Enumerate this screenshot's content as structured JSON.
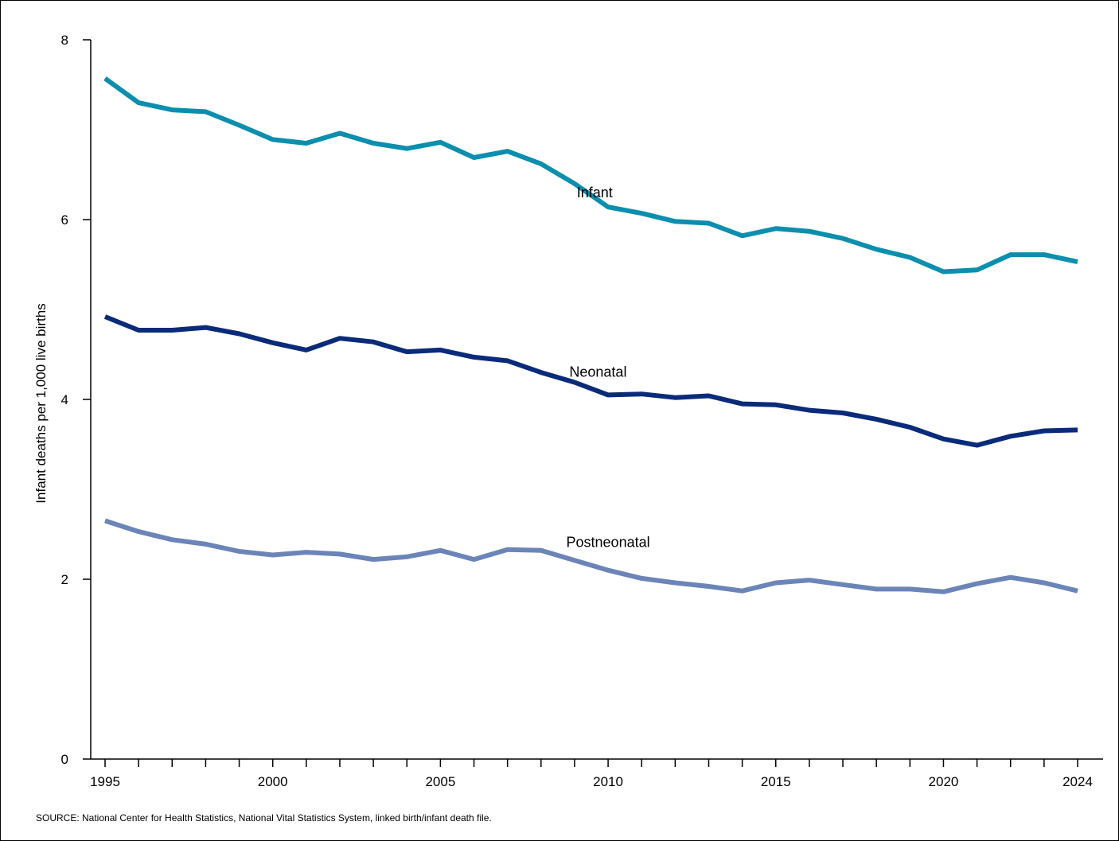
{
  "chart_data": {
    "type": "line",
    "title": "",
    "xlabel": "",
    "ylabel": "Infant deaths per 1,000 live births",
    "ylim": [
      0,
      8
    ],
    "xlim": [
      1995,
      2024
    ],
    "y_ticks": [
      0,
      2,
      4,
      6,
      8
    ],
    "x_tick_labels": [
      1995,
      2000,
      2005,
      2010,
      2015,
      2020,
      2024
    ],
    "x": [
      1995,
      1996,
      1997,
      1998,
      1999,
      2000,
      2001,
      2002,
      2003,
      2004,
      2005,
      2006,
      2007,
      2008,
      2009,
      2010,
      2011,
      2012,
      2013,
      2014,
      2015,
      2016,
      2017,
      2018,
      2019,
      2020,
      2021,
      2022,
      2023,
      2024
    ],
    "grid": false,
    "legend": "inline labels",
    "series": [
      {
        "name": "Infant",
        "color": "#0C8EAE",
        "values": [
          7.57,
          7.3,
          7.22,
          7.2,
          7.05,
          6.89,
          6.85,
          6.96,
          6.85,
          6.79,
          6.86,
          6.69,
          6.76,
          6.62,
          6.4,
          6.14,
          6.07,
          5.98,
          5.96,
          5.82,
          5.9,
          5.87,
          5.79,
          5.67,
          5.58,
          5.42,
          5.44,
          5.61,
          5.61,
          5.53
        ]
      },
      {
        "name": "Neonatal",
        "color": "#0A2B7A",
        "values": [
          4.92,
          4.77,
          4.77,
          4.8,
          4.73,
          4.63,
          4.55,
          4.68,
          4.64,
          4.53,
          4.55,
          4.47,
          4.43,
          4.3,
          4.19,
          4.05,
          4.06,
          4.02,
          4.04,
          3.95,
          3.94,
          3.88,
          3.85,
          3.78,
          3.69,
          3.56,
          3.49,
          3.59,
          3.65,
          3.66
        ]
      },
      {
        "name": "Postneonatal",
        "color": "#6C85B8",
        "values": [
          2.65,
          2.53,
          2.44,
          2.39,
          2.31,
          2.27,
          2.3,
          2.28,
          2.22,
          2.25,
          2.32,
          2.22,
          2.33,
          2.32,
          2.21,
          2.1,
          2.01,
          1.96,
          1.92,
          1.87,
          1.96,
          1.99,
          1.94,
          1.89,
          1.89,
          1.86,
          1.95,
          2.02,
          1.96,
          1.87
        ]
      }
    ]
  },
  "source": "SOURCE: National Center for Health Statistics, National Vital Statistics System, linked birth/infant death file."
}
